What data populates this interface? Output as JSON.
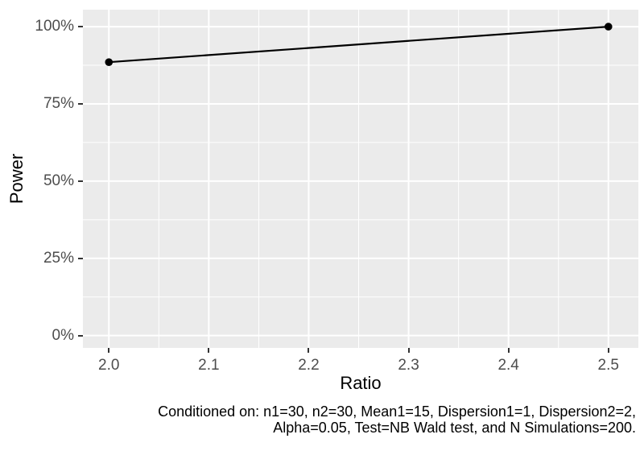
{
  "chart_data": {
    "type": "line",
    "title": "",
    "xlabel": "Ratio",
    "ylabel": "Power",
    "series": [
      {
        "name": "Power",
        "points": [
          {
            "x": 2.0,
            "y": 0.885
          },
          {
            "x": 2.5,
            "y": 1.0
          }
        ]
      }
    ],
    "y_format": "percent",
    "xlim": [
      1.974,
      2.53
    ],
    "ylim": [
      -0.04,
      1.055
    ],
    "x_ticks": {
      "values": [
        2.0,
        2.1,
        2.2,
        2.3,
        2.4,
        2.5
      ],
      "labels": [
        "2.0",
        "2.1",
        "2.2",
        "2.3",
        "2.4",
        "2.5"
      ]
    },
    "y_ticks": {
      "values": [
        0,
        0.25,
        0.5,
        0.75,
        1.0
      ],
      "labels": [
        "0%",
        "25%",
        "50%",
        "75%",
        "100%"
      ]
    },
    "x_minor": [
      2.05,
      2.15,
      2.25,
      2.35,
      2.45
    ],
    "y_minor": [
      0.125,
      0.375,
      0.625,
      0.875
    ],
    "grid": true,
    "legend": "none",
    "style": {
      "page_bg": "#FFFFFF",
      "panel_bg": "#EBEBEB",
      "grid_color": "#FFFFFF",
      "grid_major_width": 2,
      "grid_minor_width": 1,
      "line_color": "#000000",
      "line_width": 2.2,
      "point_color": "#000000",
      "point_radius": 4.8,
      "tick_text_color": "#4D4D4D",
      "axis_title_color": "#000000",
      "tick_mark_color": "#333333",
      "caption_color": "#000000"
    }
  },
  "caption": {
    "lines": [
      "Conditioned on: n1=30, n2=30, Mean1=15, Dispersion1=1, Dispersion2=2,",
      "Alpha=0.05, Test=NB Wald test, and N Simulations=200."
    ]
  }
}
